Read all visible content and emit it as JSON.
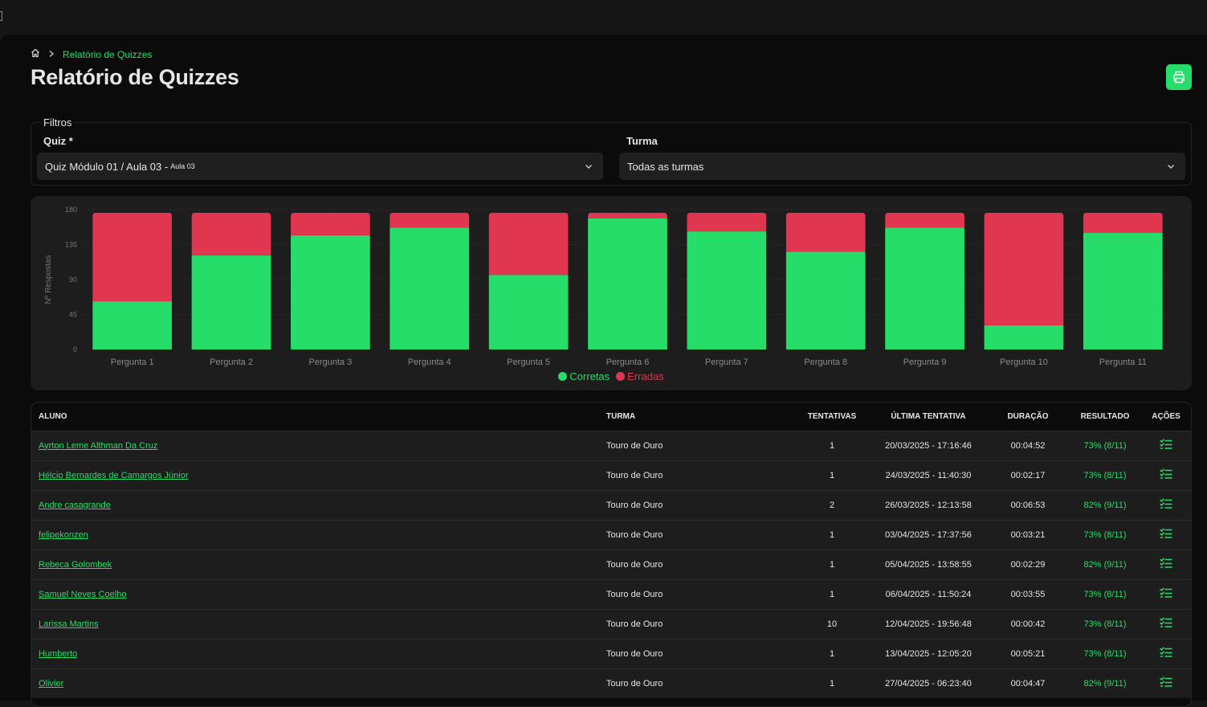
{
  "breadcrumb": {
    "current": "Relatório de Quizzes"
  },
  "page": {
    "title": "Relatório de Quizzes"
  },
  "filters": {
    "legend": "Filtros",
    "quiz_label": "Quiz *",
    "quiz_value": "Quiz Módulo 01 / Aula 03 -",
    "quiz_value_small": "Aula 03",
    "turma_label": "Turma",
    "turma_value": "Todas as turmas"
  },
  "chart_data": {
    "type": "bar",
    "stacked": true,
    "categories": [
      "Pergunta 1",
      "Pergunta 2",
      "Pergunta 3",
      "Pergunta 4",
      "Pergunta 5",
      "Pergunta 6",
      "Pergunta 7",
      "Pergunta 8",
      "Pergunta 9",
      "Pergunta 10",
      "Pergunta 11"
    ],
    "series": [
      {
        "name": "Corretas",
        "color": "#27dd6a",
        "values": [
          62,
          121,
          147,
          157,
          96,
          169,
          152,
          126,
          157,
          31,
          150
        ]
      },
      {
        "name": "Erradas",
        "color": "#e0364f",
        "values": [
          114,
          55,
          29,
          19,
          80,
          7,
          24,
          50,
          19,
          145,
          26
        ]
      }
    ],
    "ylabel": "Nº Respostas",
    "ylim": [
      0,
      180
    ],
    "yticks": [
      0,
      45,
      90,
      135,
      180
    ],
    "grid": true,
    "legend_position": "bottom"
  },
  "table": {
    "columns": [
      "ALUNO",
      "TURMA",
      "TENTATIVAS",
      "ÚLTIMA TENTATIVA",
      "DURAÇÃO",
      "RESULTADO",
      "AÇÕES"
    ],
    "rows": [
      {
        "aluno": "Ayrton Leme Althman Da Cruz",
        "turma": "Touro de Ouro",
        "tentativas": "1",
        "ultima": "20/03/2025 - 17:16:46",
        "duracao": "00:04:52",
        "resultado": "73% (8/11)"
      },
      {
        "aluno": "Hélcio Bernardes de Camargos Júnior",
        "turma": "Touro de Ouro",
        "tentativas": "1",
        "ultima": "24/03/2025 - 11:40:30",
        "duracao": "00:02:17",
        "resultado": "73% (8/11)"
      },
      {
        "aluno": "Andre casagrande",
        "turma": "Touro de Ouro",
        "tentativas": "2",
        "ultima": "26/03/2025 - 12:13:58",
        "duracao": "00:06:53",
        "resultado": "82% (9/11)"
      },
      {
        "aluno": "felipekonzen",
        "turma": "Touro de Ouro",
        "tentativas": "1",
        "ultima": "03/04/2025 - 17:37:56",
        "duracao": "00:03:21",
        "resultado": "73% (8/11)"
      },
      {
        "aluno": "Rebeca Golombek",
        "turma": "Touro de Ouro",
        "tentativas": "1",
        "ultima": "05/04/2025 - 13:58:55",
        "duracao": "00:02:29",
        "resultado": "82% (9/11)"
      },
      {
        "aluno": "Samuel Neves Coelho",
        "turma": "Touro de Ouro",
        "tentativas": "1",
        "ultima": "06/04/2025 - 11:50:24",
        "duracao": "00:03:55",
        "resultado": "73% (8/11)"
      },
      {
        "aluno": "Larissa Martins",
        "turma": "Touro de Ouro",
        "tentativas": "10",
        "ultima": "12/04/2025 - 19:56:48",
        "duracao": "00:00:42",
        "resultado": "73% (8/11)"
      },
      {
        "aluno": "Humberto",
        "turma": "Touro de Ouro",
        "tentativas": "1",
        "ultima": "13/04/2025 - 12:05:20",
        "duracao": "00:05:21",
        "resultado": "73% (8/11)"
      },
      {
        "aluno": "Olivier",
        "turma": "Touro de Ouro",
        "tentativas": "1",
        "ultima": "27/04/2025 - 06:23:40",
        "duracao": "00:04:47",
        "resultado": "82% (9/11)"
      }
    ]
  },
  "icons": {
    "home": "home-icon",
    "print": "printer-icon",
    "chevron": "chevron-down-icon",
    "details": "list-check-icon",
    "breadcrumb_sep": "chevron-right-icon"
  },
  "colors": {
    "accent": "#27dd6a",
    "error": "#e0364f"
  }
}
